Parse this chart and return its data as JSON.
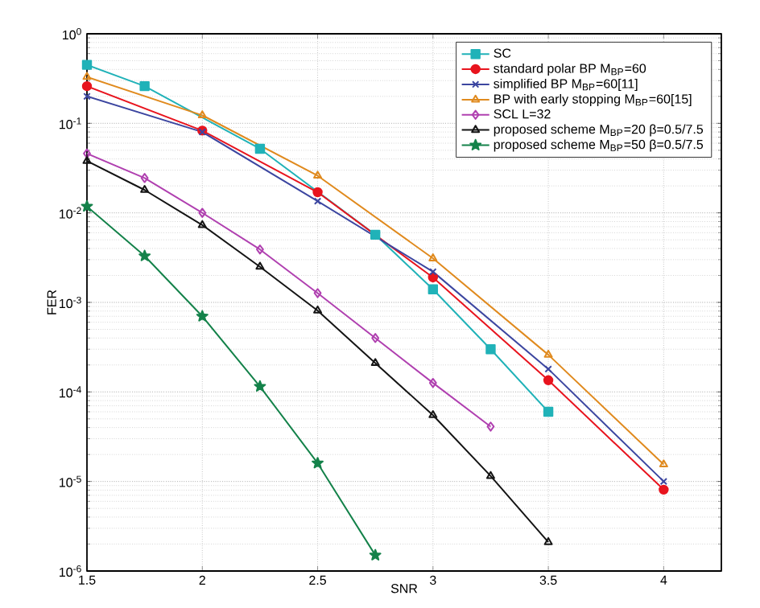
{
  "chart_data": {
    "type": "line",
    "xlabel": "SNR",
    "ylabel": "FER",
    "log": "y",
    "grid": true,
    "legend": "top right",
    "xlim": [
      1.5,
      4.25
    ],
    "xticks": [
      1.5,
      2,
      2.5,
      3,
      3.5,
      4
    ],
    "ylim": [
      1e-06,
      1
    ],
    "yticks": [
      {
        "value": 1e-06,
        "label": "10$^{-6}$"
      },
      {
        "value": 1e-05,
        "label": "10$^{-5}$"
      },
      {
        "value": 0.0001,
        "label": "10$^{-4}$"
      },
      {
        "value": 0.001,
        "label": "10$^{-3}$"
      },
      {
        "value": 0.01,
        "label": "10$^{-2}$"
      },
      {
        "value": 0.1,
        "label": "10$^{-1}$"
      },
      {
        "value": 1,
        "label": "10$^{0}$"
      }
    ],
    "series": [
      {
        "name": "SC",
        "color": "#20b2b8",
        "marker": "square",
        "x": [
          1.5,
          1.75,
          2.25,
          2.75,
          3,
          3.25,
          3.5
        ],
        "values": [
          0.45,
          0.26,
          0.052,
          0.0057,
          0.0014,
          0.0003,
          6e-05
        ]
      },
      {
        "name": "standard polar BP M$_{BP}$=60",
        "color": "#e8141e",
        "marker": "circle",
        "x": [
          1.5,
          2,
          2.5,
          3,
          3.5,
          4
        ],
        "values": [
          0.26,
          0.083,
          0.017,
          0.0019,
          0.000135,
          8.1e-06
        ]
      },
      {
        "name": "simplified BP M$_{BP}$=60[11]",
        "color": "#3c46a0",
        "marker": "cross",
        "x": [
          1.5,
          2,
          2.5,
          3,
          3.5,
          4
        ],
        "values": [
          0.2,
          0.08,
          0.0135,
          0.0022,
          0.00018,
          1e-05
        ]
      },
      {
        "name": "BP with early stopping M$_{BP}$=60[15]",
        "color": "#e08a1e",
        "marker": "triangle",
        "x": [
          1.5,
          2,
          2.5,
          3,
          3.5,
          4
        ],
        "values": [
          0.33,
          0.123,
          0.026,
          0.0031,
          0.00026,
          1.55e-05
        ]
      },
      {
        "name": "SCL L=32",
        "color": "#b040b0",
        "marker": "diamond",
        "x": [
          1.5,
          1.75,
          2,
          2.25,
          2.5,
          2.75,
          3,
          3.25
        ],
        "values": [
          0.046,
          0.0245,
          0.01,
          0.0039,
          0.00127,
          0.0004,
          0.000126,
          4.1e-05
        ]
      },
      {
        "name": "proposed scheme M$_{BP}$=20 β=0.5/7.5",
        "color": "#141414",
        "marker": "triangle",
        "x": [
          1.5,
          1.75,
          2,
          2.25,
          2.5,
          2.75,
          3,
          3.25,
          3.5
        ],
        "values": [
          0.038,
          0.018,
          0.0073,
          0.0025,
          0.00081,
          0.00021,
          5.5e-05,
          1.15e-05,
          2.1e-06
        ]
      },
      {
        "name": "proposed scheme M$_{BP}$=50 β=0.5/7.5",
        "color": "#14824a",
        "marker": "star",
        "x": [
          1.5,
          1.75,
          2,
          2.25,
          2.5,
          2.75
        ],
        "values": [
          0.0118,
          0.0033,
          0.0007,
          0.000115,
          1.6e-05,
          1.5e-06
        ]
      }
    ]
  }
}
